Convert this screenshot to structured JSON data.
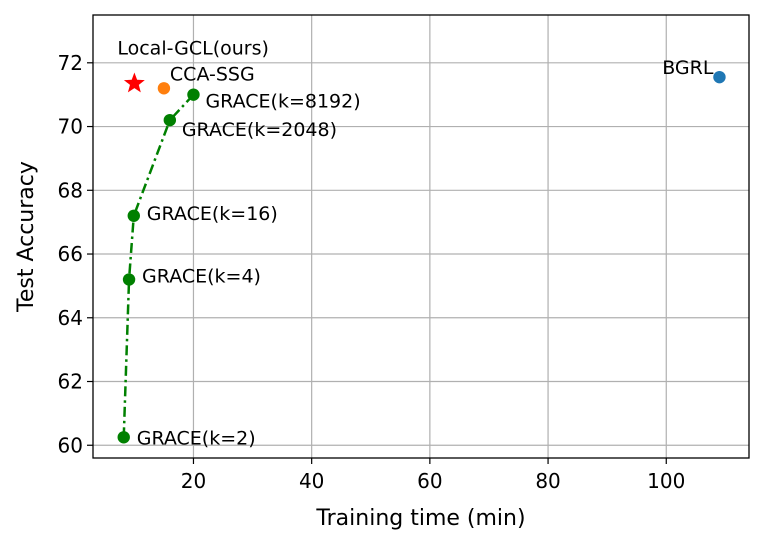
{
  "chart_data": {
    "type": "scatter",
    "xlabel": "Training time (min)",
    "ylabel": "Test Accuracy",
    "xlim": [
      3,
      114
    ],
    "ylim": [
      59.6,
      73.5
    ],
    "xticks": [
      20,
      40,
      60,
      80,
      100
    ],
    "yticks": [
      60,
      62,
      64,
      66,
      68,
      70,
      72
    ],
    "grid": true,
    "series": [
      {
        "color": "#008000",
        "marker": "circle",
        "line": "dashdot",
        "points": [
          {
            "x": 8.2,
            "y": 60.25,
            "label": "GRACE(k=2)"
          },
          {
            "x": 9.1,
            "y": 65.2,
            "label": "GRACE(k=4)"
          },
          {
            "x": 9.9,
            "y": 67.2,
            "label": "GRACE(k=16)"
          },
          {
            "x": 16.0,
            "y": 70.2,
            "label": "GRACE(k=2048)"
          },
          {
            "x": 20.0,
            "y": 71.0,
            "label": "GRACE(k=8192)"
          }
        ]
      },
      {
        "color": "#ff7f0e",
        "marker": "circle",
        "points": [
          {
            "x": 15.0,
            "y": 71.2,
            "label": "CCA-SSG"
          }
        ]
      },
      {
        "color": "#1f77b4",
        "marker": "circle",
        "points": [
          {
            "x": 109.0,
            "y": 71.55,
            "label": "BGRL"
          }
        ]
      },
      {
        "color": "#ff0000",
        "marker": "star",
        "points": [
          {
            "x": 10.0,
            "y": 71.35,
            "label": "Local-GCL(ours)"
          }
        ]
      }
    ]
  }
}
